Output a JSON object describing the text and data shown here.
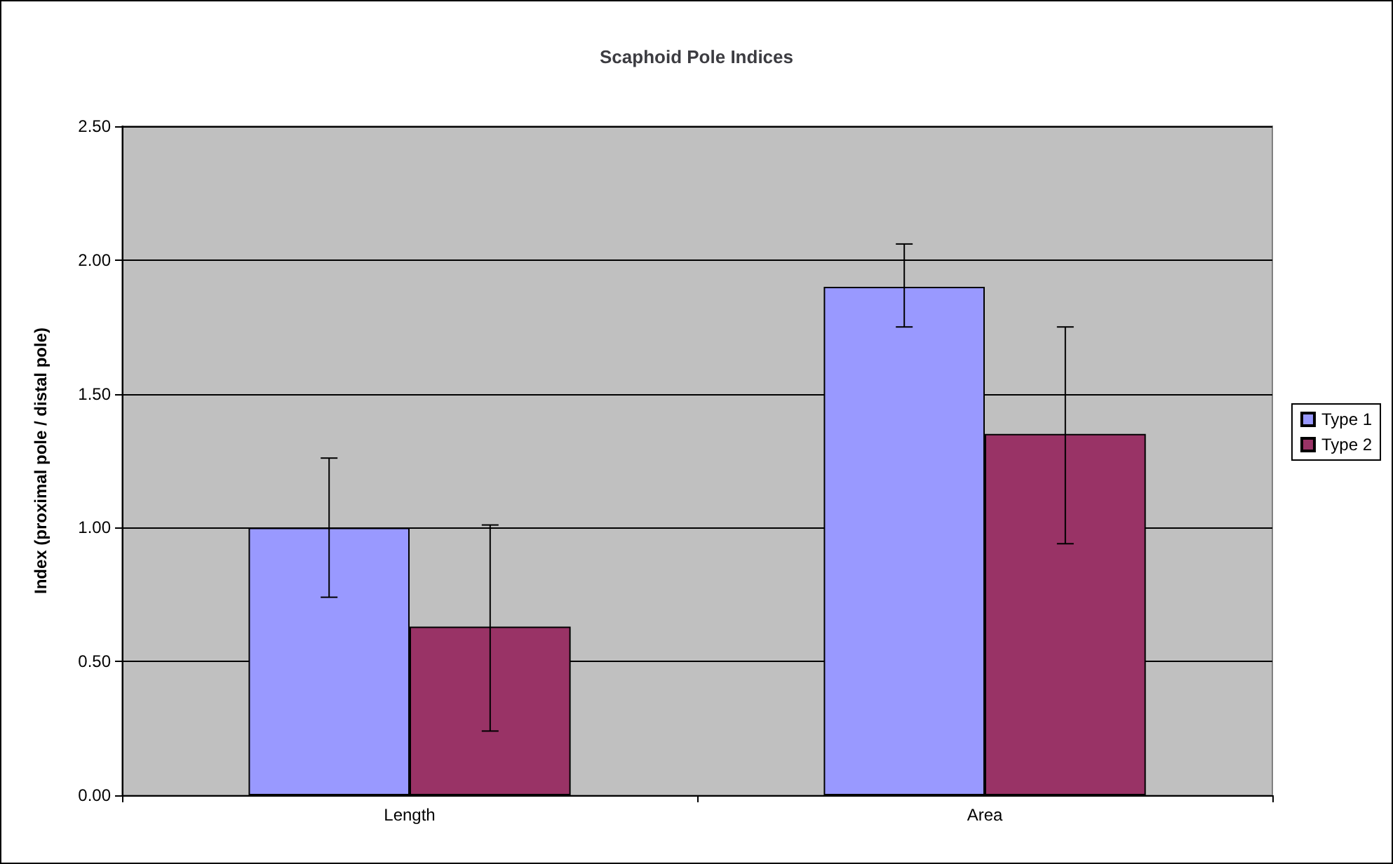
{
  "chart_data": {
    "type": "bar",
    "title": "Scaphoid Pole Indices",
    "ylabel": "Index (proximal pole / distal pole)",
    "categories": [
      "Length",
      "Area"
    ],
    "series": [
      {
        "name": "Type 1",
        "color": "#9999ff",
        "values": [
          1.0,
          1.9
        ],
        "errors": [
          [
            0.74,
            1.26
          ],
          [
            1.75,
            2.06
          ]
        ]
      },
      {
        "name": "Type 2",
        "color": "#993366",
        "values": [
          0.63,
          1.35
        ],
        "errors": [
          [
            0.24,
            1.01
          ],
          [
            0.94,
            1.75
          ]
        ]
      }
    ],
    "ylim": [
      0,
      2.5
    ],
    "yticks": [
      {
        "value": 0,
        "label": "0.00"
      },
      {
        "value": 0.5,
        "label": "0.50"
      },
      {
        "value": 1,
        "label": "1.00"
      },
      {
        "value": 1.5,
        "label": "1.50"
      },
      {
        "value": 2,
        "label": "2.00"
      },
      {
        "value": 2.5,
        "label": "2.50"
      }
    ],
    "grid": "y",
    "legend": "right"
  }
}
